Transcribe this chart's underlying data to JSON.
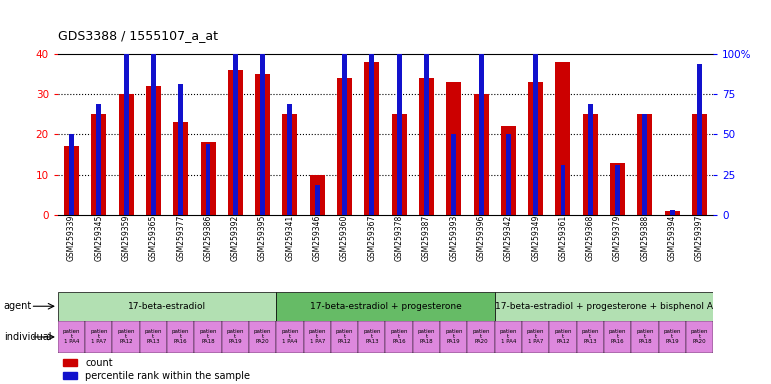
{
  "title": "GDS3388 / 1555107_a_at",
  "gsm_ids": [
    "GSM259339",
    "GSM259345",
    "GSM259359",
    "GSM259365",
    "GSM259377",
    "GSM259386",
    "GSM259392",
    "GSM259395",
    "GSM259341",
    "GSM259346",
    "GSM259360",
    "GSM259367",
    "GSM259378",
    "GSM259387",
    "GSM259393",
    "GSM259396",
    "GSM259342",
    "GSM259349",
    "GSM259361",
    "GSM259368",
    "GSM259379",
    "GSM259388",
    "GSM259394",
    "GSM259397"
  ],
  "counts": [
    17,
    25,
    30,
    32,
    23,
    18,
    36,
    35,
    25,
    10,
    34,
    38,
    25,
    34,
    33,
    30,
    22,
    33,
    38,
    25,
    13,
    25,
    1,
    25
  ],
  "percentile_ranks": [
    20,
    27.5,
    40,
    40,
    32.5,
    17.5,
    47.5,
    40,
    27.5,
    7.5,
    40,
    45,
    40,
    45,
    20,
    50,
    20,
    45,
    12.5,
    27.5,
    12.5,
    25,
    1.25,
    37.5
  ],
  "bar_color": "#cc0000",
  "percentile_color": "#1111cc",
  "ylim_left": [
    0,
    40
  ],
  "ylim_right": [
    0,
    100
  ],
  "yticks_left": [
    0,
    10,
    20,
    30,
    40
  ],
  "yticks_right": [
    0,
    25,
    50,
    75,
    100
  ],
  "ytick_labels_right": [
    "0",
    "25",
    "50",
    "75",
    "100%"
  ],
  "agent_configs": [
    {
      "start": 0,
      "end": 8,
      "color": "#b2e0b2",
      "label": "17-beta-estradiol"
    },
    {
      "start": 8,
      "end": 16,
      "color": "#66bb66",
      "label": "17-beta-estradiol + progesterone"
    },
    {
      "start": 16,
      "end": 24,
      "color": "#b2e0b2",
      "label": "17-beta-estradiol + progesterone + bisphenol A"
    }
  ],
  "indiv_labels": [
    "patien\nt\n1 PA4",
    "patien\nt\n1 PA7",
    "patien\nt\nPA12",
    "patien\nt\nPA13",
    "patien\nt\nPA16",
    "patien\nt\nPA18",
    "patien\nt\nPA19",
    "patien\nt\nPA20"
  ],
  "individual_color": "#dd88dd",
  "bar_width": 0.55,
  "pct_bar_width": 0.18
}
